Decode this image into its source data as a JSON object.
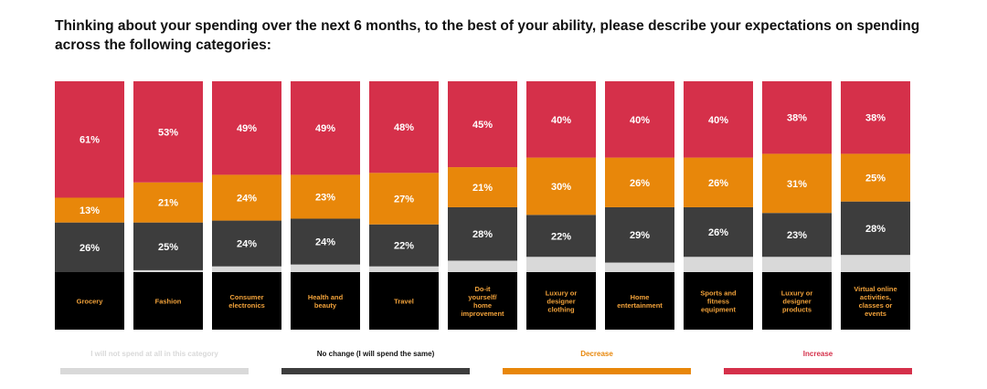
{
  "title": "Thinking about your spending over the next 6 months, to the best of your ability, please describe your expectations on spending across the following categories:",
  "colors": {
    "not_spend": "#d9d9d9",
    "no_change": "#3d3d3d",
    "decrease": "#e8870a",
    "increase": "#d5304a",
    "label_box": "#000000",
    "label_text": "#f2a23a"
  },
  "legend": [
    {
      "key": "not_spend",
      "label": "I will not spend at all in this category"
    },
    {
      "key": "no_change",
      "label": "No change (I will spend the same)"
    },
    {
      "key": "decrease",
      "label": "Decrease"
    },
    {
      "key": "increase",
      "label": "Increase"
    }
  ],
  "chart_data": {
    "type": "bar",
    "stacked": true,
    "percent": true,
    "categories": [
      "Grocery",
      "Fashion",
      "Consumer electronics",
      "Health and beauty",
      "Travel",
      "Do-it yourself/ home improvement",
      "Luxury or designer clothing",
      "Home entertainment",
      "Sports and fitness equipment",
      "Luxury or designer products",
      "Virtual online activities, classes or events"
    ],
    "series": [
      {
        "name": "I will not spend at all in this category",
        "key": "not_spend",
        "values": [
          0,
          1,
          3,
          4,
          3,
          6,
          8,
          5,
          8,
          8,
          9
        ]
      },
      {
        "name": "No change (I will spend the same)",
        "key": "no_change",
        "values": [
          26,
          25,
          24,
          24,
          22,
          28,
          22,
          29,
          26,
          23,
          28
        ]
      },
      {
        "name": "Decrease",
        "key": "decrease",
        "values": [
          13,
          21,
          24,
          23,
          27,
          21,
          30,
          26,
          26,
          31,
          25
        ]
      },
      {
        "name": "Increase",
        "key": "increase",
        "values": [
          61,
          53,
          49,
          49,
          48,
          45,
          40,
          40,
          40,
          38,
          38
        ]
      }
    ],
    "value_labels": {
      "no_change": [
        "26%",
        "25%",
        "24%",
        "24%",
        "22%",
        "28%",
        "22%",
        "29%",
        "26%",
        "23%",
        "28%"
      ],
      "decrease": [
        "13%",
        "21%",
        "24%",
        "23%",
        "27%",
        "21%",
        "30%",
        "26%",
        "26%",
        "31%",
        "25%"
      ],
      "increase": [
        "61%",
        "53%",
        "49%",
        "49%",
        "48%",
        "45%",
        "40%",
        "40%",
        "40%",
        "38%",
        "38%"
      ]
    },
    "category_label_lines": [
      [
        "Grocery"
      ],
      [
        "Fashion"
      ],
      [
        "Consumer",
        "electronics"
      ],
      [
        "Health and",
        "beauty"
      ],
      [
        "Travel"
      ],
      [
        "Do-it",
        "yourself/",
        "home",
        "improvement"
      ],
      [
        "Luxury or",
        "designer",
        "clothing"
      ],
      [
        "Home",
        "entertainment"
      ],
      [
        "Sports and",
        "fitness",
        "equipment"
      ],
      [
        "Luxury or",
        "designer",
        "products"
      ],
      [
        "Virtual online",
        "activities,",
        "classes or",
        "events"
      ]
    ],
    "ylim": [
      0,
      100
    ],
    "grid": false,
    "legend_position": "bottom"
  }
}
